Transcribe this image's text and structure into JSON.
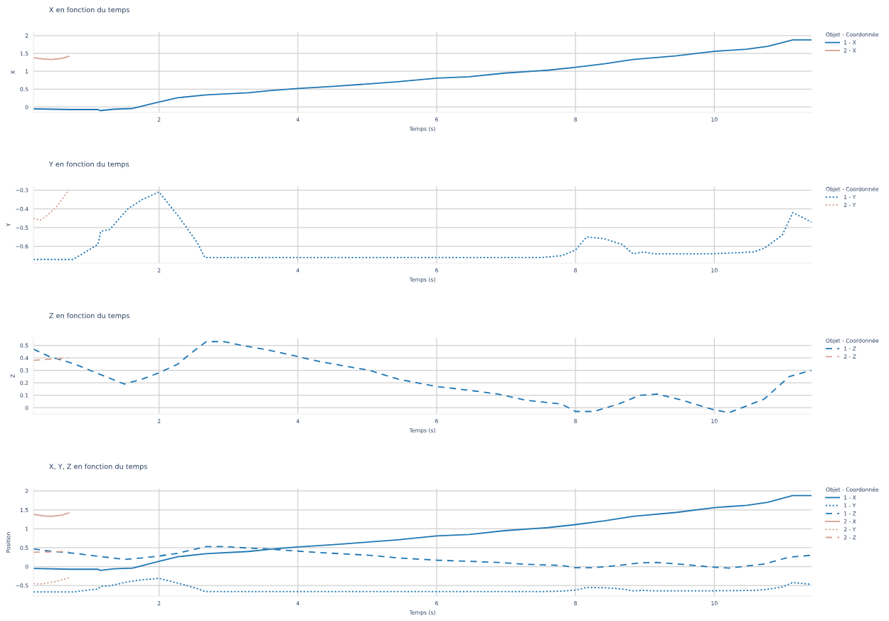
{
  "chart_data": [
    {
      "type": "line",
      "title": "X en fonction du temps",
      "xlabel": "Temps (s)",
      "ylabel": "X",
      "legend_title": "Objet - Coordonnée",
      "legend": "right",
      "grid": true,
      "xlim": [
        0.19,
        11.4
      ],
      "xticks": [
        2,
        4,
        6,
        8,
        10
      ],
      "ylim": [
        -0.15,
        2.1
      ],
      "yticks": [
        0,
        0.5,
        1,
        1.5,
        2
      ],
      "series": [
        {
          "name": "1 - X",
          "color": "#1f77b4",
          "line_style": "solid",
          "x": [
            0.19,
            0.73,
            1.12,
            1.15,
            1.35,
            1.62,
            2.0,
            2.27,
            2.68,
            3.29,
            3.6,
            4.0,
            4.52,
            5.03,
            5.44,
            6.0,
            6.47,
            6.98,
            7.6,
            8.0,
            8.42,
            8.83,
            9.44,
            10.0,
            10.47,
            10.77,
            11.13,
            11.4
          ],
          "values": [
            -0.05,
            -0.07,
            -0.07,
            -0.1,
            -0.06,
            -0.04,
            0.14,
            0.26,
            0.34,
            0.4,
            0.46,
            0.52,
            0.58,
            0.65,
            0.71,
            0.81,
            0.85,
            0.95,
            1.03,
            1.11,
            1.21,
            1.33,
            1.43,
            1.56,
            1.62,
            1.7,
            1.88,
            1.88
          ]
        },
        {
          "name": "2 - X",
          "color": "#d4a294",
          "line_style": "solid",
          "x": [
            0.19,
            0.35,
            0.45,
            0.6,
            0.7
          ],
          "values": [
            1.38,
            1.34,
            1.33,
            1.36,
            1.42
          ]
        }
      ]
    },
    {
      "type": "line",
      "title": "Y en fonction du temps",
      "xlabel": "Temps (s)",
      "ylabel": "Y",
      "legend_title": "Objet - Coordonnée",
      "legend": "right",
      "grid": true,
      "xlim": [
        0.19,
        11.4
      ],
      "xticks": [
        2,
        4,
        6,
        8,
        10
      ],
      "ylim": [
        -0.69,
        -0.28
      ],
      "yticks": [
        {
          "value": -0.6,
          "label": "−0.6"
        },
        {
          "value": -0.5,
          "label": "−0.5"
        },
        {
          "value": -0.4,
          "label": "−0.4"
        },
        {
          "value": -0.3,
          "label": "−0.3"
        }
      ],
      "series": [
        {
          "name": "1 - Y",
          "color": "#1f77b4",
          "line_style": "dotted",
          "x": [
            0.19,
            0.76,
            1.12,
            1.16,
            1.29,
            1.55,
            1.76,
            2.0,
            2.3,
            2.55,
            2.66,
            2.76,
            2.88,
            3.5,
            4.5,
            5.5,
            6.5,
            7.5,
            7.8,
            8.0,
            8.16,
            8.42,
            8.67,
            8.83,
            8.98,
            9.13,
            9.95,
            10.57,
            10.72,
            10.98,
            11.13,
            11.4
          ],
          "values": [
            -0.67,
            -0.67,
            -0.59,
            -0.52,
            -0.51,
            -0.4,
            -0.35,
            -0.31,
            -0.45,
            -0.58,
            -0.66,
            -0.66,
            -0.66,
            -0.66,
            -0.66,
            -0.66,
            -0.66,
            -0.66,
            -0.65,
            -0.62,
            -0.55,
            -0.56,
            -0.59,
            -0.64,
            -0.63,
            -0.64,
            -0.64,
            -0.63,
            -0.61,
            -0.54,
            -0.42,
            -0.47
          ]
        },
        {
          "name": "2 - Y",
          "color": "#d4a294",
          "line_style": "dotted",
          "x": [
            0.19,
            0.29,
            0.37,
            0.52,
            0.7
          ],
          "values": [
            -0.45,
            -0.46,
            -0.44,
            -0.39,
            -0.3
          ]
        }
      ]
    },
    {
      "type": "line",
      "title": "Z en fonction du temps",
      "xlabel": "Temps (s)",
      "ylabel": "Z",
      "legend_title": "Objet - Coordonnée",
      "legend": "right",
      "grid": true,
      "xlim": [
        0.19,
        11.4
      ],
      "xticks": [
        2,
        4,
        6,
        8,
        10
      ],
      "ylim": [
        -0.05,
        0.56
      ],
      "yticks": [
        0,
        0.1,
        0.2,
        0.3,
        0.4,
        0.5
      ],
      "series": [
        {
          "name": "1 - Z",
          "color": "#1f77b4",
          "line_style": "dashed",
          "x": [
            0.19,
            0.42,
            0.73,
            0.83,
            1.14,
            1.5,
            1.76,
            2.0,
            2.27,
            2.42,
            2.68,
            2.94,
            3.19,
            3.6,
            4.0,
            4.32,
            4.62,
            5.03,
            5.44,
            6.0,
            6.47,
            6.88,
            7.29,
            7.8,
            8.0,
            8.26,
            8.62,
            8.93,
            9.18,
            9.54,
            9.95,
            10.21,
            10.72,
            11.08,
            11.4
          ],
          "values": [
            0.47,
            0.41,
            0.36,
            0.34,
            0.27,
            0.19,
            0.23,
            0.28,
            0.35,
            0.42,
            0.53,
            0.53,
            0.5,
            0.46,
            0.41,
            0.37,
            0.34,
            0.3,
            0.23,
            0.17,
            0.14,
            0.11,
            0.06,
            0.03,
            -0.03,
            -0.03,
            0.03,
            0.1,
            0.11,
            0.06,
            -0.01,
            -0.04,
            0.07,
            0.25,
            0.3
          ]
        },
        {
          "name": "2 - Z",
          "color": "#d4a294",
          "line_style": "dashed",
          "x": [
            0.19,
            0.45,
            0.7
          ],
          "values": [
            0.38,
            0.39,
            0.4
          ]
        }
      ]
    },
    {
      "type": "line",
      "title": "X, Y, Z en fonction du temps",
      "xlabel": "Temps (s)",
      "ylabel": "Position",
      "legend_title": "Objet - Coordonnée",
      "legend": "right",
      "grid": true,
      "xlim": [
        0.19,
        11.4
      ],
      "xticks": [
        2,
        4,
        6,
        8,
        10
      ],
      "ylim": [
        -0.78,
        2.06
      ],
      "yticks": [
        {
          "value": -0.5,
          "label": "−0.5"
        },
        0,
        0.5,
        1,
        1.5,
        2
      ],
      "series": [
        {
          "name": "1 - X",
          "color": "#1f77b4",
          "line_style": "solid",
          "x": [
            0.19,
            0.73,
            1.12,
            1.15,
            1.35,
            1.62,
            2.0,
            2.27,
            2.68,
            3.29,
            3.6,
            4.0,
            4.52,
            5.03,
            5.44,
            6.0,
            6.47,
            6.98,
            7.6,
            8.0,
            8.42,
            8.83,
            9.44,
            10.0,
            10.47,
            10.77,
            11.13,
            11.4
          ],
          "values": [
            -0.05,
            -0.07,
            -0.07,
            -0.1,
            -0.06,
            -0.04,
            0.14,
            0.26,
            0.34,
            0.4,
            0.46,
            0.52,
            0.58,
            0.65,
            0.71,
            0.81,
            0.85,
            0.95,
            1.03,
            1.11,
            1.21,
            1.33,
            1.43,
            1.56,
            1.62,
            1.7,
            1.88,
            1.88
          ]
        },
        {
          "name": "1 - Y",
          "color": "#1f77b4",
          "line_style": "dotted",
          "x": [
            0.19,
            0.76,
            1.12,
            1.16,
            1.29,
            1.55,
            1.76,
            2.0,
            2.3,
            2.55,
            2.66,
            2.76,
            2.88,
            3.5,
            4.5,
            5.5,
            6.5,
            7.5,
            7.8,
            8.0,
            8.16,
            8.42,
            8.67,
            8.83,
            8.98,
            9.13,
            9.95,
            10.57,
            10.72,
            10.98,
            11.13,
            11.4
          ],
          "values": [
            -0.67,
            -0.67,
            -0.59,
            -0.52,
            -0.51,
            -0.4,
            -0.35,
            -0.31,
            -0.45,
            -0.58,
            -0.66,
            -0.66,
            -0.66,
            -0.66,
            -0.66,
            -0.66,
            -0.66,
            -0.66,
            -0.65,
            -0.62,
            -0.55,
            -0.56,
            -0.59,
            -0.64,
            -0.63,
            -0.64,
            -0.64,
            -0.63,
            -0.61,
            -0.54,
            -0.42,
            -0.47
          ]
        },
        {
          "name": "1 - Z",
          "color": "#1f77b4",
          "line_style": "dashed",
          "x": [
            0.19,
            0.42,
            0.73,
            0.83,
            1.14,
            1.5,
            1.76,
            2.0,
            2.27,
            2.42,
            2.68,
            2.94,
            3.19,
            3.6,
            4.0,
            4.32,
            4.62,
            5.03,
            5.44,
            6.0,
            6.47,
            6.88,
            7.29,
            7.8,
            8.0,
            8.26,
            8.62,
            8.93,
            9.18,
            9.54,
            9.95,
            10.21,
            10.72,
            11.08,
            11.4
          ],
          "values": [
            0.47,
            0.41,
            0.36,
            0.34,
            0.27,
            0.19,
            0.23,
            0.28,
            0.35,
            0.42,
            0.53,
            0.53,
            0.5,
            0.46,
            0.41,
            0.37,
            0.34,
            0.3,
            0.23,
            0.17,
            0.14,
            0.11,
            0.06,
            0.03,
            -0.03,
            -0.03,
            0.03,
            0.1,
            0.11,
            0.06,
            -0.01,
            -0.04,
            0.07,
            0.25,
            0.3
          ]
        },
        {
          "name": "2 - X",
          "color": "#d4a294",
          "line_style": "solid",
          "x": [
            0.19,
            0.35,
            0.45,
            0.6,
            0.7
          ],
          "values": [
            1.38,
            1.34,
            1.33,
            1.36,
            1.42
          ]
        },
        {
          "name": "2 - Y",
          "color": "#d4a294",
          "line_style": "dotted",
          "x": [
            0.19,
            0.29,
            0.37,
            0.52,
            0.7
          ],
          "values": [
            -0.45,
            -0.46,
            -0.44,
            -0.39,
            -0.3
          ]
        },
        {
          "name": "2 - Z",
          "color": "#d4a294",
          "line_style": "dashed",
          "x": [
            0.19,
            0.45,
            0.7
          ],
          "values": [
            0.38,
            0.39,
            0.4
          ]
        }
      ]
    }
  ]
}
